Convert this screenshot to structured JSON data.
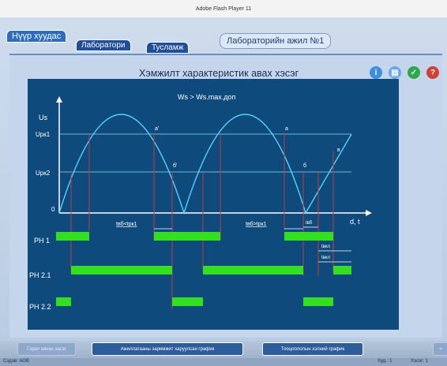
{
  "window": {
    "title": "Adobe Flash Player 11"
  },
  "tabs": {
    "home": "Нүүр хуудас",
    "lab": "Лаборатори",
    "help": "Тусламж"
  },
  "lab_title": "Лабораторийн ажил №1",
  "main_title": "Хэмжилт характеристик авах хэсэг",
  "toolbar_icons": [
    "info-icon",
    "copy-icon",
    "check-icon",
    "help-icon"
  ],
  "colors": {
    "chart_bg": "#0e4b7c",
    "curve": "#4fd3ff",
    "signal": "#33e020",
    "marker": "#c23b3b"
  },
  "chart": {
    "condition": "Ws > Ws.max.доп",
    "y_axis_label": "Us",
    "x_axis_label": "d, t",
    "zero_label": "0",
    "levels": [
      "Uрк1",
      "Uрк2"
    ],
    "point_labels": {
      "a1": "a'",
      "b1": "б'",
      "a2": "a",
      "b2": "б",
      "v": "в"
    },
    "time_labels": {
      "t1": "tвб<tрк1",
      "t2": "tвб>tрк1",
      "tvb": "tвб",
      "tbl1": "tвкл",
      "tbl2": "tвкл"
    },
    "rows": [
      "PH 1",
      "PH 2.1",
      "PH 2.2"
    ]
  },
  "buttons": {
    "prev": "Гэрэл хянах хэсэг",
    "graph1": "Ажиллагааны заримжит харуулсан график",
    "graph2": "Тооцоололын хэлний график",
    "next": "»"
  },
  "status": {
    "left": "Сэдэв: АОВ",
    "page": "Худ.: 1",
    "right": "Хэсэг: 1"
  }
}
